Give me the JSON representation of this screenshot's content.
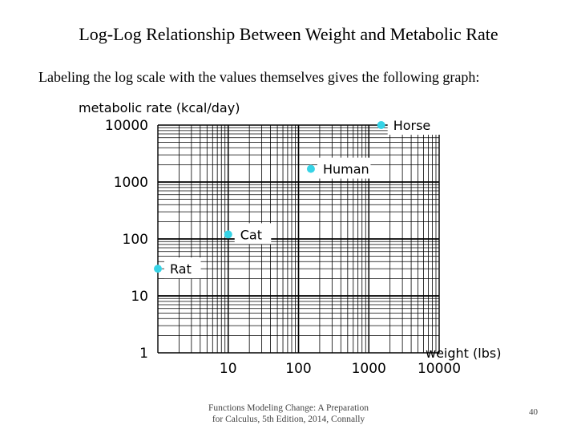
{
  "slide": {
    "title": "Log-Log Relationship Between Weight and Metabolic Rate",
    "subtitle": "Labeling the log scale with the values themselves gives the following graph:"
  },
  "chart_data": {
    "type": "scatter",
    "title": "",
    "xlabel": "weight (lbs)",
    "ylabel": "metabolic rate (kcal/day)",
    "xscale": "log",
    "yscale": "log",
    "xlim": [
      1,
      10000
    ],
    "ylim": [
      1,
      10000
    ],
    "x_ticks": [
      10,
      100,
      1000,
      10000
    ],
    "x_tick_labels": [
      "10",
      "100",
      "1000",
      "10000"
    ],
    "y_ticks": [
      1,
      10,
      100,
      1000,
      10000
    ],
    "y_tick_labels": [
      "1",
      "10",
      "100",
      "1000",
      "10000"
    ],
    "grid": true,
    "point_color": "#36d3e6",
    "points": [
      {
        "label": "Rat",
        "x": 1,
        "y": 30
      },
      {
        "label": "Cat",
        "x": 10,
        "y": 120
      },
      {
        "label": "Human",
        "x": 150,
        "y": 1700
      },
      {
        "label": "Horse",
        "x": 1500,
        "y": 10000
      }
    ]
  },
  "footer": {
    "citation_line1": "Functions Modeling Change: A Preparation",
    "citation_line2": "for Calculus, 5th Edition, 2014, Connally",
    "page_number": "40"
  }
}
